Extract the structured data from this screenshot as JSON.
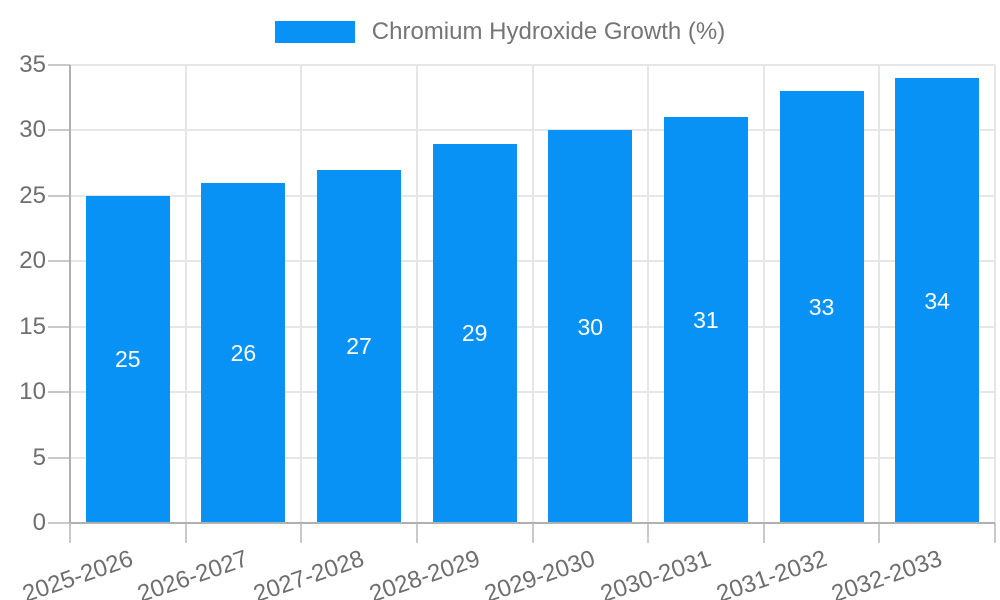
{
  "legend": {
    "label": "Chromium Hydroxide Growth (%)"
  },
  "chart_data": {
    "type": "bar",
    "title": "Chromium Hydroxide Growth (%)",
    "categories": [
      "2025-2026",
      "2026-2027",
      "2027-2028",
      "2028-2029",
      "2029-2030",
      "2030-2031",
      "2031-2032",
      "2032-2033"
    ],
    "series": [
      {
        "name": "Chromium Hydroxide Growth (%)",
        "values": [
          25,
          26,
          27,
          29,
          30,
          31,
          33,
          34
        ]
      }
    ],
    "value_labels": [
      "25",
      "26",
      "27",
      "29",
      "30",
      "31",
      "33",
      "34"
    ],
    "xlabel": "",
    "ylabel": "",
    "ylim": [
      0,
      35
    ],
    "ytick_step": 5,
    "ytick_labels": [
      "0",
      "5",
      "10",
      "15",
      "20",
      "25",
      "30",
      "35"
    ],
    "grid": true,
    "legend_position": "top",
    "x_label_rotation_deg": -19,
    "colors": {
      "bar": "#0892f5",
      "value_label": "#ffffff",
      "grid": "#e6e6e6",
      "axis_line": "#b0b0b0",
      "tick": "#c9c9c9",
      "tick_label": "#6e6e6e",
      "legend_text": "#757575",
      "background": "#ffffff"
    }
  }
}
